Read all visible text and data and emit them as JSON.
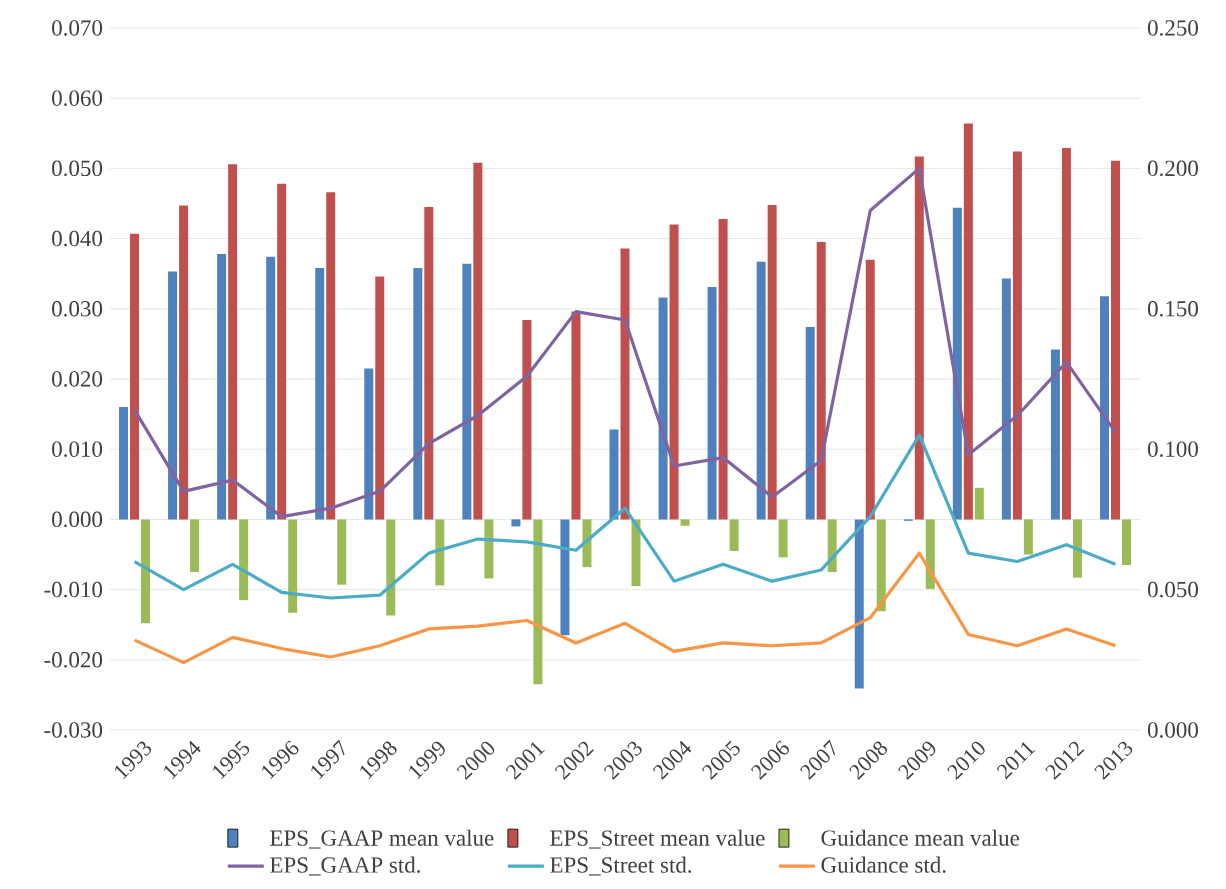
{
  "chart_data": {
    "type": "bar",
    "categories": [
      "1993",
      "1994",
      "1995",
      "1996",
      "1997",
      "1998",
      "1999",
      "2000",
      "2001",
      "2002",
      "2003",
      "2004",
      "2005",
      "2006",
      "2007",
      "2008",
      "2009",
      "2010",
      "2011",
      "2012",
      "2013"
    ],
    "series": [
      {
        "name": "EPS_GAAP mean value",
        "type": "bar",
        "color": "#4f81bd",
        "values": [
          0.016,
          0.0353,
          0.0378,
          0.0374,
          0.0358,
          0.0215,
          0.0358,
          0.0364,
          -0.001,
          -0.0165,
          0.0128,
          0.0316,
          0.0331,
          0.0367,
          0.0274,
          -0.0241,
          -0.0002,
          0.0444,
          0.0343,
          0.0242,
          0.0318
        ]
      },
      {
        "name": "EPS_Street mean value",
        "type": "bar",
        "color": "#c0504d",
        "values": [
          0.0407,
          0.0447,
          0.0506,
          0.0478,
          0.0466,
          0.0346,
          0.0445,
          0.0508,
          0.0284,
          0.0296,
          0.0386,
          0.042,
          0.0428,
          0.0448,
          0.0395,
          0.037,
          0.0517,
          0.0564,
          0.0524,
          0.0529,
          0.0511
        ]
      },
      {
        "name": "Guidance mean value",
        "type": "bar",
        "color": "#9bbb59",
        "values": [
          -0.0148,
          -0.0075,
          -0.0115,
          -0.0133,
          -0.0093,
          -0.0137,
          -0.0094,
          -0.0084,
          -0.0235,
          -0.0068,
          -0.0095,
          -0.0009,
          -0.0045,
          -0.0054,
          -0.0075,
          -0.0131,
          -0.0099,
          0.0045,
          -0.005,
          -0.0083,
          -0.0065
        ]
      },
      {
        "name": "EPS_GAAP std.",
        "type": "line",
        "axis": "y2",
        "color": "#8064a2",
        "values": [
          0.114,
          0.085,
          0.089,
          0.076,
          0.079,
          0.085,
          0.102,
          0.112,
          0.126,
          0.149,
          0.146,
          0.094,
          0.097,
          0.083,
          0.096,
          0.185,
          0.2,
          0.098,
          0.112,
          0.131,
          0.106
        ]
      },
      {
        "name": "EPS_Street std.",
        "type": "line",
        "axis": "y2",
        "color": "#4bacc6",
        "values": [
          0.06,
          0.05,
          0.059,
          0.049,
          0.047,
          0.048,
          0.063,
          0.068,
          0.067,
          0.064,
          0.079,
          0.053,
          0.059,
          0.053,
          0.057,
          0.076,
          0.105,
          0.063,
          0.06,
          0.066,
          0.059
        ]
      },
      {
        "name": "Guidance std.",
        "type": "line",
        "axis": "y2",
        "color": "#f79646",
        "values": [
          0.032,
          0.024,
          0.033,
          0.029,
          0.026,
          0.03,
          0.036,
          0.037,
          0.039,
          0.031,
          0.038,
          0.028,
          0.031,
          0.03,
          0.031,
          0.04,
          0.063,
          0.034,
          0.03,
          0.036,
          0.03
        ]
      }
    ],
    "ylim": [
      -0.03,
      0.07
    ],
    "yticks": [
      {
        "value": -0.03,
        "label": "-0.030"
      },
      {
        "value": -0.02,
        "label": "-0.020"
      },
      {
        "value": -0.01,
        "label": "-0.010"
      },
      {
        "value": 0,
        "label": "0.000"
      },
      {
        "value": 0.01,
        "label": "0.010"
      },
      {
        "value": 0.02,
        "label": "0.020"
      },
      {
        "value": 0.03,
        "label": "0.030"
      },
      {
        "value": 0.04,
        "label": "0.040"
      },
      {
        "value": 0.05,
        "label": "0.050"
      },
      {
        "value": 0.06,
        "label": "0.060"
      },
      {
        "value": 0.07,
        "label": "0.070"
      }
    ],
    "y2lim": [
      0,
      0.25
    ],
    "y2ticks": [
      {
        "value": 0,
        "label": "0.000"
      },
      {
        "value": 0.05,
        "label": "0.050"
      },
      {
        "value": 0.1,
        "label": "0.100"
      },
      {
        "value": 0.15,
        "label": "0.150"
      },
      {
        "value": 0.2,
        "label": "0.200"
      },
      {
        "value": 0.25,
        "label": "0.250"
      }
    ],
    "grid": "y",
    "legend": "bottom"
  }
}
